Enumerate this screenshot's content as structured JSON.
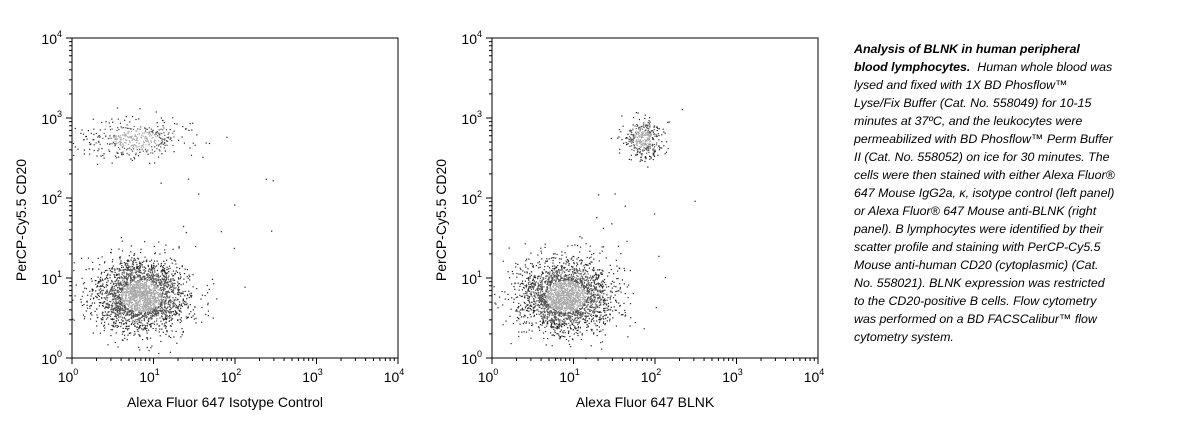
{
  "chart_data": [
    {
      "type": "scatter",
      "panel": "left",
      "xlabel": "Alexa Fluor 647 Isotype Control",
      "ylabel": "PerCP-Cy5.5 CD20",
      "x_scale": "log",
      "y_scale": "log",
      "xlim": [
        1,
        10000
      ],
      "ylim": [
        1,
        10000
      ],
      "x_ticks": [
        {
          "base": "10",
          "exp": "0",
          "value": 1
        },
        {
          "base": "10",
          "exp": "1",
          "value": 10
        },
        {
          "base": "10",
          "exp": "2",
          "value": 100
        },
        {
          "base": "10",
          "exp": "3",
          "value": 1000
        },
        {
          "base": "10",
          "exp": "4",
          "value": 10000
        }
      ],
      "y_ticks": [
        {
          "base": "10",
          "exp": "0",
          "value": 1
        },
        {
          "base": "10",
          "exp": "1",
          "value": 10
        },
        {
          "base": "10",
          "exp": "2",
          "value": 100
        },
        {
          "base": "10",
          "exp": "3",
          "value": 1000
        },
        {
          "base": "10",
          "exp": "4",
          "value": 10000
        }
      ],
      "populations": [
        {
          "x_center": 7,
          "y_center": 6,
          "x_spread_decades": 0.28,
          "y_spread_decades": 0.22,
          "count": 2600
        },
        {
          "x_center": 6,
          "y_center": 550,
          "x_spread_decades": 0.32,
          "y_spread_decades": 0.12,
          "count": 420
        }
      ]
    },
    {
      "type": "scatter",
      "panel": "right",
      "xlabel": "Alexa Fluor 647 BLNK",
      "ylabel": "PerCP-Cy5.5 CD20",
      "x_scale": "log",
      "y_scale": "log",
      "xlim": [
        1,
        10000
      ],
      "ylim": [
        1,
        10000
      ],
      "x_ticks": [
        {
          "base": "10",
          "exp": "0",
          "value": 1
        },
        {
          "base": "10",
          "exp": "1",
          "value": 10
        },
        {
          "base": "10",
          "exp": "2",
          "value": 100
        },
        {
          "base": "10",
          "exp": "3",
          "value": 1000
        },
        {
          "base": "10",
          "exp": "4",
          "value": 10000
        }
      ],
      "y_ticks": [
        {
          "base": "10",
          "exp": "0",
          "value": 1
        },
        {
          "base": "10",
          "exp": "1",
          "value": 10
        },
        {
          "base": "10",
          "exp": "2",
          "value": 100
        },
        {
          "base": "10",
          "exp": "3",
          "value": 1000
        },
        {
          "base": "10",
          "exp": "4",
          "value": 10000
        }
      ],
      "populations": [
        {
          "x_center": 8,
          "y_center": 6,
          "x_spread_decades": 0.28,
          "y_spread_decades": 0.22,
          "count": 2600
        },
        {
          "x_center": 70,
          "y_center": 550,
          "x_spread_decades": 0.12,
          "y_spread_decades": 0.12,
          "count": 380
        }
      ]
    }
  ],
  "caption": {
    "lead": "Analysis of BLNK in human peripheral blood lymphocytes.",
    "body": "Human whole blood was lysed and fixed with 1X BD Phosflow™ Lyse/Fix Buffer (Cat. No. 558049) for 10-15 minutes at 37ºC, and the leukocytes were permeabilized with BD Phosflow™ Perm Buffer II (Cat. No. 558052) on ice for 30 minutes.  The cells were then stained with either Alexa Fluor® 647 Mouse IgG2a, κ, isotype control (left panel) or Alexa Fluor® 647 Mouse anti-BLNK (right panel).  B lymphocytes were identified by their scatter profile and staining with PerCP-Cy5.5 Mouse anti-human CD20 (cytoplasmic) (Cat. No. 558021).  BLNK expression was restricted to the CD20-positive B cells.  Flow cytometry was performed on a BD FACSCalibur™ flow cytometry system."
  }
}
